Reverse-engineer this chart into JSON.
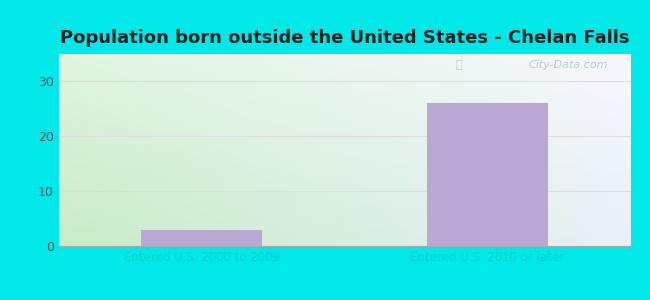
{
  "title": "Population born outside the United States - Chelan Falls",
  "categories": [
    "Entered U.S. 2000 to 2009",
    "Entered U.S. 2010 or later"
  ],
  "values": [
    3,
    26
  ],
  "bar_color": "#b9a8d4",
  "background_outer": "#00e8e8",
  "bg_top_left": "#eaf5ea",
  "bg_bottom_left": "#c8ecc8",
  "bg_top_right": "#f5f5ff",
  "bg_bottom_right": "#e8f0f8",
  "yticks": [
    0,
    10,
    20,
    30
  ],
  "ylim": [
    0,
    35
  ],
  "title_fontsize": 13,
  "xlabel_color": "#00cccc",
  "watermark": "City-Data.com",
  "grid_color": "#dddddd"
}
